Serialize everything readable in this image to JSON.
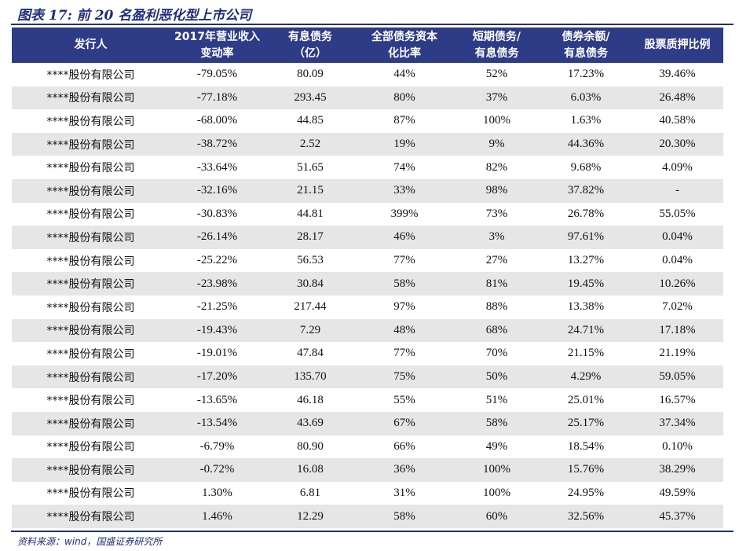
{
  "title": "图表 17:  前 20 名盈利恶化型上市公司",
  "table": {
    "headers": [
      {
        "line1": "发行人",
        "line2": ""
      },
      {
        "line1": "2017年营业收入",
        "line2": "变动率"
      },
      {
        "line1": "有息债务",
        "line2": "（亿）"
      },
      {
        "line1": "全部债务资本",
        "line2": "化比率"
      },
      {
        "line1": "短期债务/",
        "line2": "有息债务"
      },
      {
        "line1": "债券余额/",
        "line2": "有息债务"
      },
      {
        "line1": "股票质押比例",
        "line2": ""
      }
    ],
    "rows": [
      [
        "****股份有限公司",
        "-79.05%",
        "80.09",
        "44%",
        "52%",
        "17.23%",
        "39.46%"
      ],
      [
        "****股份有限公司",
        "-77.18%",
        "293.45",
        "80%",
        "37%",
        "6.03%",
        "26.48%"
      ],
      [
        "****股份有限公司",
        "-68.00%",
        "44.85",
        "87%",
        "100%",
        "1.63%",
        "40.58%"
      ],
      [
        "****股份有限公司",
        "-38.72%",
        "2.52",
        "19%",
        "9%",
        "44.36%",
        "20.30%"
      ],
      [
        "****股份有限公司",
        "-33.64%",
        "51.65",
        "74%",
        "82%",
        "9.68%",
        "4.09%"
      ],
      [
        "****股份有限公司",
        "-32.16%",
        "21.15",
        "33%",
        "98%",
        "37.82%",
        "-"
      ],
      [
        "****股份有限公司",
        "-30.83%",
        "44.81",
        "399%",
        "73%",
        "26.78%",
        "55.05%"
      ],
      [
        "****股份有限公司",
        "-26.14%",
        "28.17",
        "46%",
        "3%",
        "97.61%",
        "0.04%"
      ],
      [
        "****股份有限公司",
        "-25.22%",
        "56.53",
        "77%",
        "27%",
        "13.27%",
        "0.04%"
      ],
      [
        "****股份有限公司",
        "-23.98%",
        "30.84",
        "58%",
        "81%",
        "19.45%",
        "10.26%"
      ],
      [
        "****股份有限公司",
        "-21.25%",
        "217.44",
        "97%",
        "88%",
        "13.38%",
        "7.02%"
      ],
      [
        "****股份有限公司",
        "-19.43%",
        "7.29",
        "48%",
        "68%",
        "24.71%",
        "17.18%"
      ],
      [
        "****股份有限公司",
        "-19.01%",
        "47.84",
        "77%",
        "70%",
        "21.15%",
        "21.19%"
      ],
      [
        "****股份有限公司",
        "-17.20%",
        "135.70",
        "75%",
        "50%",
        "4.29%",
        "59.05%"
      ],
      [
        "****股份有限公司",
        "-13.65%",
        "46.18",
        "55%",
        "51%",
        "25.01%",
        "16.57%"
      ],
      [
        "****股份有限公司",
        "-13.54%",
        "43.69",
        "67%",
        "58%",
        "25.17%",
        "37.34%"
      ],
      [
        "****股份有限公司",
        "-6.79%",
        "80.90",
        "66%",
        "49%",
        "18.54%",
        "0.10%"
      ],
      [
        "****股份有限公司",
        "-0.72%",
        "16.08",
        "36%",
        "100%",
        "15.76%",
        "38.29%"
      ],
      [
        "****股份有限公司",
        "1.30%",
        "6.81",
        "31%",
        "100%",
        "24.95%",
        "49.59%"
      ],
      [
        "****股份有限公司",
        "1.46%",
        "12.29",
        "58%",
        "60%",
        "32.56%",
        "45.37%"
      ]
    ]
  },
  "source": "资料来源：wind，国盛证券研究所",
  "colors": {
    "header_bg": "#2e3b86",
    "title": "#1f2d7a",
    "stripe": "#e6e6e6"
  }
}
